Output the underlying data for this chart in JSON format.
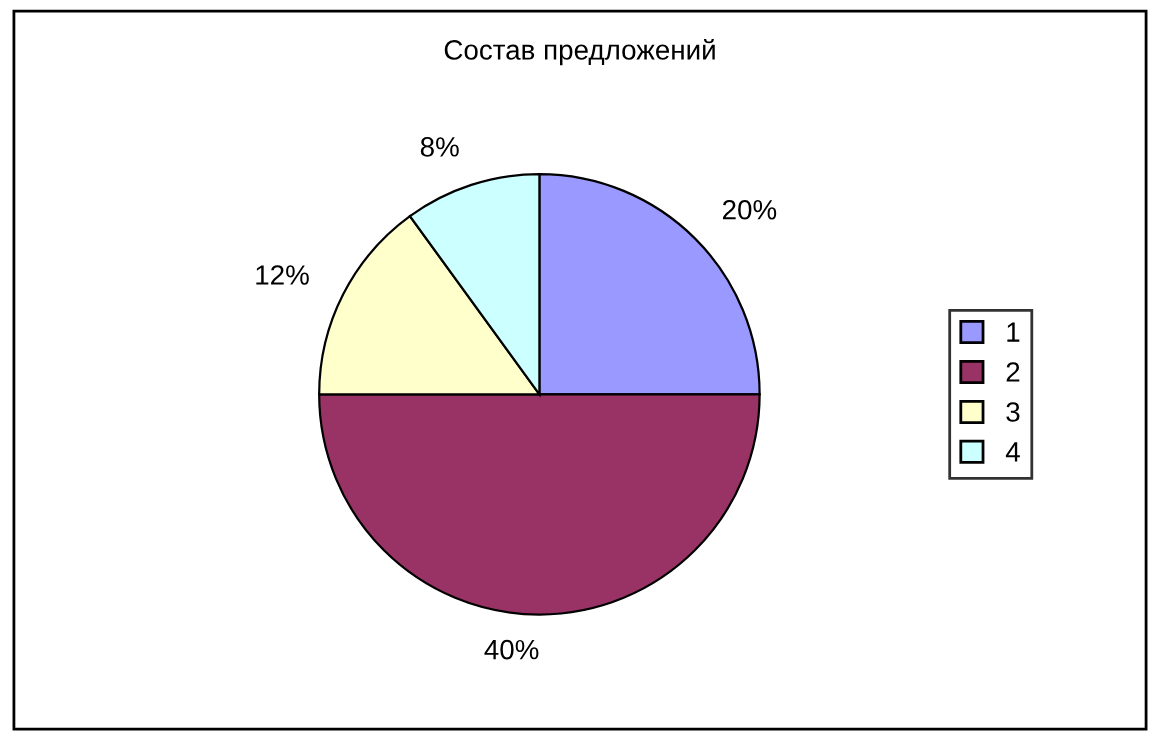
{
  "chart_data": {
    "type": "pie",
    "title": "Состав предложений",
    "categories": [
      "1",
      "2",
      "3",
      "4"
    ],
    "values": [
      20,
      40,
      12,
      8
    ],
    "value_labels": [
      "20%",
      "40%",
      "12%",
      "8%"
    ],
    "colors": [
      "#9999ff",
      "#993366",
      "#ffffcc",
      "#ccffff"
    ],
    "legend": "right"
  }
}
